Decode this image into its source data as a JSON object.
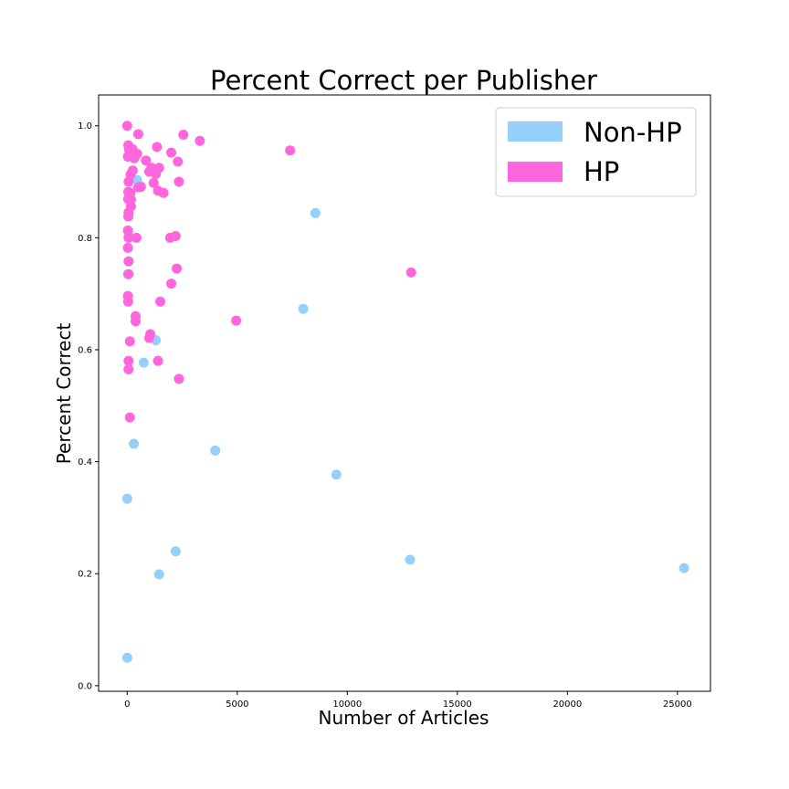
{
  "chart_data": {
    "type": "scatter",
    "title": "Percent Correct per Publisher",
    "xlabel": "Number of Articles",
    "ylabel": "Percent Correct",
    "xlim": [
      -1300,
      26500
    ],
    "ylim": [
      -0.01,
      1.055
    ],
    "xticks": [
      0,
      5000,
      10000,
      15000,
      20000,
      25000
    ],
    "xtick_labels": [
      "0",
      "5000",
      "10000",
      "15000",
      "20000",
      "25000"
    ],
    "yticks": [
      0.0,
      0.2,
      0.4,
      0.6,
      0.8,
      1.0
    ],
    "ytick_labels": [
      "0.0",
      "0.2",
      "0.4",
      "0.6",
      "0.8",
      "1.0"
    ],
    "grid": false,
    "legend_position": "top-right",
    "series": [
      {
        "name": "Non-HP",
        "color": "#94d0fa",
        "points": [
          [
            450,
            0.903
          ],
          [
            60,
            0.803
          ],
          [
            30,
            0.735
          ],
          [
            1300,
            0.617
          ],
          [
            750,
            0.577
          ],
          [
            300,
            0.432
          ],
          [
            0,
            0.334
          ],
          [
            0,
            0.05
          ],
          [
            1450,
            0.199
          ],
          [
            2200,
            0.24
          ],
          [
            4000,
            0.42
          ],
          [
            8000,
            0.673
          ],
          [
            8550,
            0.844
          ],
          [
            9500,
            0.377
          ],
          [
            12850,
            0.225
          ],
          [
            25300,
            0.21
          ]
        ]
      },
      {
        "name": "HP",
        "color": "#ff66dd",
        "points": [
          [
            0,
            1.0
          ],
          [
            50,
            0.965
          ],
          [
            80,
            0.958
          ],
          [
            250,
            0.958
          ],
          [
            30,
            0.945
          ],
          [
            200,
            0.952
          ],
          [
            320,
            0.942
          ],
          [
            500,
            0.985
          ],
          [
            450,
            0.95
          ],
          [
            150,
            0.913
          ],
          [
            250,
            0.92
          ],
          [
            60,
            0.9
          ],
          [
            50,
            0.882
          ],
          [
            150,
            0.88
          ],
          [
            40,
            0.869
          ],
          [
            170,
            0.868
          ],
          [
            170,
            0.856
          ],
          [
            60,
            0.845
          ],
          [
            50,
            0.838
          ],
          [
            30,
            0.813
          ],
          [
            60,
            0.8
          ],
          [
            420,
            0.8
          ],
          [
            30,
            0.782
          ],
          [
            60,
            0.758
          ],
          [
            60,
            0.735
          ],
          [
            30,
            0.696
          ],
          [
            40,
            0.686
          ],
          [
            380,
            0.66
          ],
          [
            380,
            0.651
          ],
          [
            120,
            0.615
          ],
          [
            60,
            0.58
          ],
          [
            60,
            0.565
          ],
          [
            120,
            0.479
          ],
          [
            500,
            0.89
          ],
          [
            620,
            0.891
          ],
          [
            850,
            0.938
          ],
          [
            1000,
            0.918
          ],
          [
            1100,
            0.925
          ],
          [
            1200,
            0.898
          ],
          [
            1300,
            0.914
          ],
          [
            1350,
            0.962
          ],
          [
            1400,
            0.884
          ],
          [
            1450,
            0.925
          ],
          [
            1650,
            0.88
          ],
          [
            1500,
            0.686
          ],
          [
            1000,
            0.621
          ],
          [
            1050,
            0.628
          ],
          [
            1400,
            0.58
          ],
          [
            2000,
            0.952
          ],
          [
            2300,
            0.936
          ],
          [
            2350,
            0.9
          ],
          [
            2550,
            0.984
          ],
          [
            1950,
            0.8
          ],
          [
            2200,
            0.803
          ],
          [
            2000,
            0.718
          ],
          [
            2250,
            0.745
          ],
          [
            2350,
            0.548
          ],
          [
            3300,
            0.973
          ],
          [
            4950,
            0.652
          ],
          [
            7400,
            0.956
          ],
          [
            12900,
            0.738
          ]
        ]
      }
    ]
  }
}
